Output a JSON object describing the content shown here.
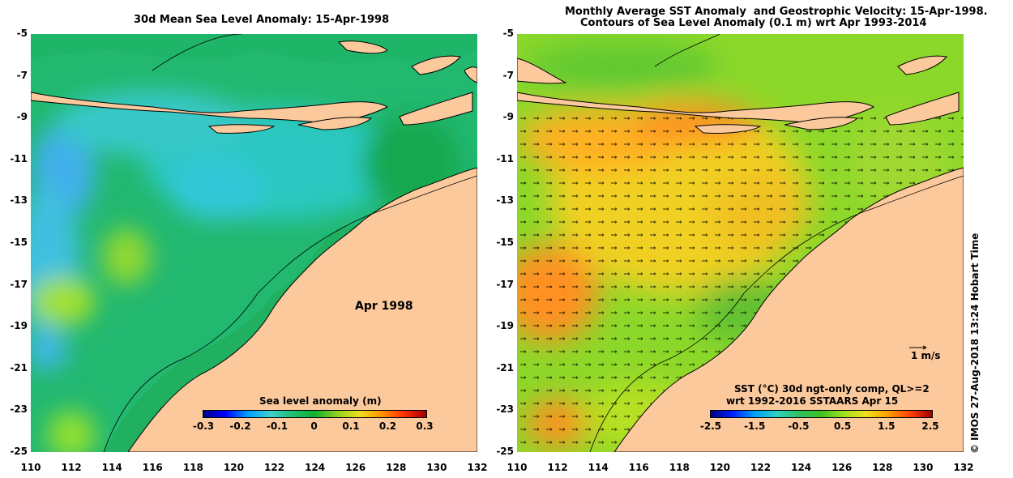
{
  "left_panel": {
    "title": "30d Mean Sea Level Anomaly: 15-Apr-1998",
    "month_label": "Apr 1998",
    "colorbar": {
      "title": "Sea level anomaly (m)",
      "ticks": [
        "-0.3",
        "-0.2",
        "-0.1",
        "0",
        "0.1",
        "0.2",
        "0.3"
      ],
      "range": [
        -0.3,
        0.3
      ],
      "colormap": [
        "#00008b",
        "#0000ff",
        "#00a0ff",
        "#40d0d0",
        "#20c070",
        "#10b030",
        "#90d020",
        "#f0e020",
        "#ff9000",
        "#ff3000",
        "#a00000"
      ]
    }
  },
  "right_panel": {
    "title_line1": "Monthly Average SST Anomaly  and Geostrophic Velocity: 15-Apr-1998.",
    "title_line2": "Contours of Sea Level Anomaly (0.1 m) wrt Apr 1993-2014",
    "scale_label": "1 m/s",
    "legend_line1": "SST (°C) 30d ngt-only comp, QL>=2",
    "legend_line2": "wrt 1992-2016 SSTAARS Apr 15",
    "colorbar": {
      "ticks": [
        "-2.5",
        "-1.5",
        "-0.5",
        "0.5",
        "1.5",
        "2.5"
      ],
      "range": [
        -2.5,
        2.5
      ],
      "colormap": [
        "#000080",
        "#0020ff",
        "#00a0ff",
        "#30d0c0",
        "#30c060",
        "#40c020",
        "#a0e020",
        "#f0e020",
        "#ffa000",
        "#ff4000",
        "#a00000"
      ]
    }
  },
  "axes": {
    "y_ticks": [
      "-5",
      "-7",
      "-9",
      "-11",
      "-13",
      "-15",
      "-17",
      "-19",
      "-21",
      "-23",
      "-25"
    ],
    "x_ticks": [
      "110",
      "112",
      "114",
      "116",
      "118",
      "120",
      "122",
      "124",
      "126",
      "128",
      "130",
      "132"
    ],
    "lat_range": [
      -25,
      -5
    ],
    "lon_range": [
      110,
      132
    ]
  },
  "colors": {
    "land": "#fcc99c",
    "sea_background": "#22b870",
    "coast_line": "#000000"
  },
  "credit": "© IMOS 27-Aug-2018 13:24 Hobart Time"
}
